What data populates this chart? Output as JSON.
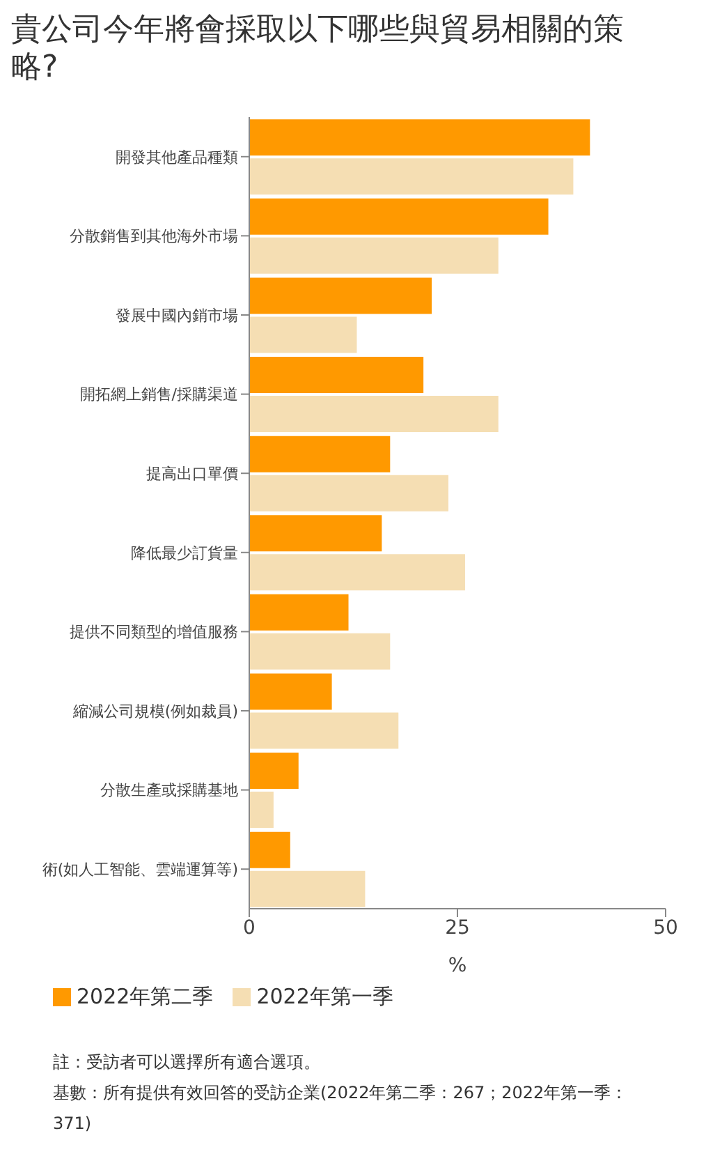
{
  "chart_data": {
    "type": "bar",
    "orientation": "horizontal",
    "title": "貴公司今年將會採取以下哪些與貿易相關的策略?",
    "categories": [
      "開發其他產品種類",
      "分散銷售到其他海外市場",
      "發展中國內銷市場",
      "開拓網上銷售/採購渠道",
      "提高出口單價",
      "降低最少訂貨量",
      "提供不同類型的增值服務",
      "縮減公司規模(例如裁員)",
      "分散生產或採購基地",
      "術(如人工智能、雲端運算等)"
    ],
    "series": [
      {
        "name": "2022年第二季",
        "color": "#ff9900",
        "values": [
          41,
          36,
          22,
          21,
          17,
          16,
          12,
          10,
          6,
          5
        ]
      },
      {
        "name": "2022年第一季",
        "color": "#f5deb3",
        "values": [
          39,
          30,
          13,
          30,
          24,
          26,
          17,
          18,
          3,
          14
        ]
      }
    ],
    "xlabel": "%",
    "xlim": [
      0,
      50
    ],
    "xticks": [
      0,
      25,
      50
    ],
    "grid": false,
    "legend": "bottom",
    "annotations": [
      "註：受訪者可以選擇所有適合選項。",
      "基數：所有提供有效回答的受訪企業(2022年第二季：267；2022年第一季：371)"
    ]
  }
}
